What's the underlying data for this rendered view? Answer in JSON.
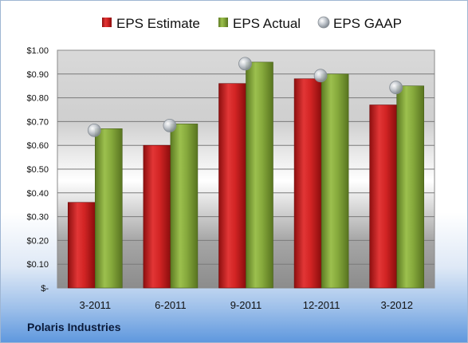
{
  "footer": {
    "company": "Polaris Industries"
  },
  "chart_data": {
    "type": "bar",
    "categories": [
      "3-2011",
      "6-2011",
      "9-2011",
      "12-2011",
      "3-2012"
    ],
    "series": [
      {
        "name": "EPS Estimate",
        "type": "bar",
        "color": "#c81c1c",
        "values": [
          0.36,
          0.6,
          0.86,
          0.88,
          0.77
        ]
      },
      {
        "name": "EPS Actual",
        "type": "bar",
        "color": "#7fa03a",
        "values": [
          0.67,
          0.69,
          0.95,
          0.9,
          0.85
        ]
      },
      {
        "name": "EPS GAAP",
        "type": "marker",
        "color": "#a8b0b8",
        "values": [
          0.67,
          0.69,
          0.95,
          0.9,
          0.85
        ]
      }
    ],
    "ylim": [
      0,
      1.0
    ],
    "yticks": [
      {
        "value": 1.0,
        "label": "$1.00"
      },
      {
        "value": 0.9,
        "label": "$0.90"
      },
      {
        "value": 0.8,
        "label": "$0.80"
      },
      {
        "value": 0.7,
        "label": "$0.70"
      },
      {
        "value": 0.6,
        "label": "$0.60"
      },
      {
        "value": 0.5,
        "label": "$0.50"
      },
      {
        "value": 0.4,
        "label": "$0.40"
      },
      {
        "value": 0.3,
        "label": "$0.30"
      },
      {
        "value": 0.2,
        "label": "$0.20"
      },
      {
        "value": 0.1,
        "label": "$0.10"
      },
      {
        "value": 0.0,
        "label": "$-"
      }
    ],
    "grid": true,
    "legend": "top",
    "title": "",
    "xlabel": "",
    "ylabel": ""
  }
}
